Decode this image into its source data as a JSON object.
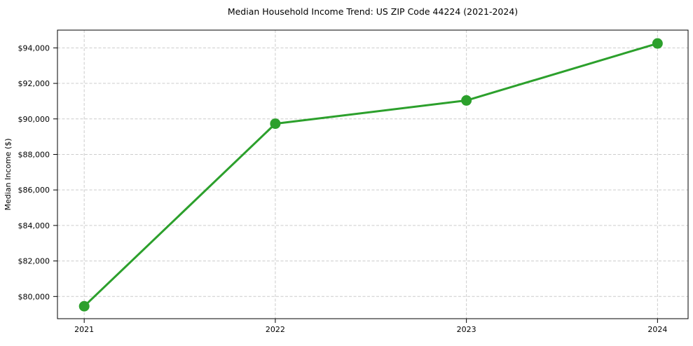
{
  "window": {
    "background": "#ffffff"
  },
  "chart_data": {
    "type": "line",
    "title": "Median Household Income Trend: US ZIP Code 44224 (2021-2024)",
    "xlabel": "",
    "ylabel": "Median Income ($)",
    "x": [
      2021,
      2022,
      2023,
      2024
    ],
    "x_tick_labels": [
      "2021",
      "2022",
      "2023",
      "2024"
    ],
    "y_ticks": [
      80000,
      82000,
      84000,
      86000,
      88000,
      90000,
      92000,
      94000
    ],
    "y_tick_labels": [
      "$80,000",
      "$82,000",
      "$84,000",
      "$86,000",
      "$88,000",
      "$90,000",
      "$92,000",
      "$94,000"
    ],
    "series": [
      {
        "name": "median-household-income",
        "values": [
          79450,
          89730,
          91040,
          94250
        ],
        "color": "#2ca02c",
        "marker": "circle"
      }
    ],
    "xlim": [
      2020.86,
      2024.16
    ],
    "ylim": [
      78750,
      95000
    ],
    "grid": true,
    "grid_style": "dashed",
    "legend_position": "none",
    "style": {
      "grid_color": "#cccccc",
      "grid_dash": "4 2.5",
      "axis_color": "#000000",
      "text_color": "#000000",
      "line_width": 3,
      "marker_radius": 7.5,
      "tick_length": 6
    }
  }
}
